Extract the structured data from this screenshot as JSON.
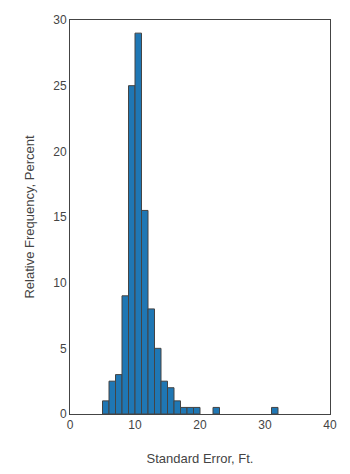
{
  "chart_data": {
    "type": "bar",
    "x": [
      5,
      6,
      7,
      8,
      9,
      10,
      11,
      12,
      13,
      14,
      15,
      16,
      17,
      18,
      19,
      22,
      31
    ],
    "values": [
      1,
      2.5,
      3,
      9,
      25,
      29,
      15.5,
      8,
      5,
      2.5,
      2,
      1,
      0.5,
      0.5,
      0.5,
      0.5,
      0.5
    ],
    "bin_width": 1,
    "xlabel": "Standard Error, Ft.",
    "ylabel": "Relative Frequency, Percent",
    "xlim": [
      0,
      40
    ],
    "ylim": [
      0,
      30
    ],
    "xticks": [
      0,
      10,
      20,
      30,
      40
    ],
    "yticks": [
      0,
      5,
      10,
      15,
      20,
      25,
      30
    ],
    "grid": false
  }
}
